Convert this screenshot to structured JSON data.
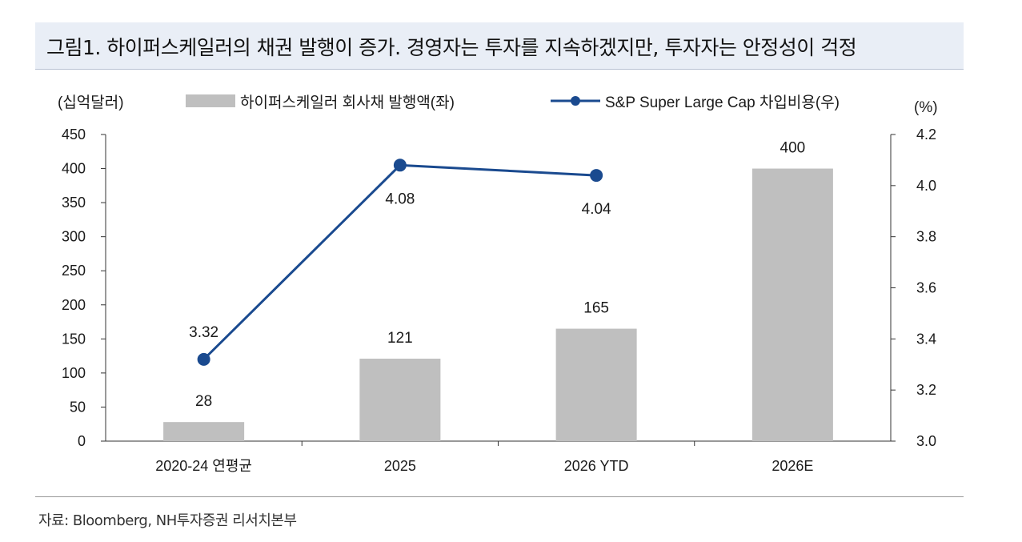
{
  "title": "그림1. 하이퍼스케일러의 채권 발행이 증가. 경영자는 투자를 지속하겠지만, 투자자는 안정성이 걱정",
  "source": "자료: Bloomberg, NH투자증권 리서치본부",
  "chart_data": {
    "type": "bar+line",
    "categories": [
      "2020-24 연평균",
      "2025",
      "2026 YTD",
      "2026E"
    ],
    "left_axis": {
      "unit_label": "(십억달러)",
      "ylim": [
        0,
        450
      ],
      "ticks": [
        "0",
        "50",
        "100",
        "150",
        "200",
        "250",
        "300",
        "350",
        "400",
        "450"
      ]
    },
    "right_axis": {
      "unit_label": "(%)",
      "ylim": [
        3.0,
        4.2
      ],
      "ticks": [
        "3.0",
        "3.2",
        "3.4",
        "3.6",
        "3.8",
        "4.0",
        "4.2"
      ]
    },
    "series": [
      {
        "name": "하이퍼스케일러 회사채 발행액(좌)",
        "type": "bar",
        "axis": "left",
        "color": "#bfbfbf",
        "values": [
          28,
          121,
          165,
          400
        ],
        "labels": [
          "28",
          "121",
          "165",
          "400"
        ]
      },
      {
        "name": "S&P Super Large Cap 차입비용(우)",
        "type": "line",
        "axis": "right",
        "color": "#1a4a8f",
        "values": [
          3.32,
          4.08,
          4.04,
          null
        ],
        "labels": [
          "3.32",
          "4.08",
          "4.04",
          ""
        ]
      }
    ],
    "legend_position": "top",
    "grid": false
  }
}
